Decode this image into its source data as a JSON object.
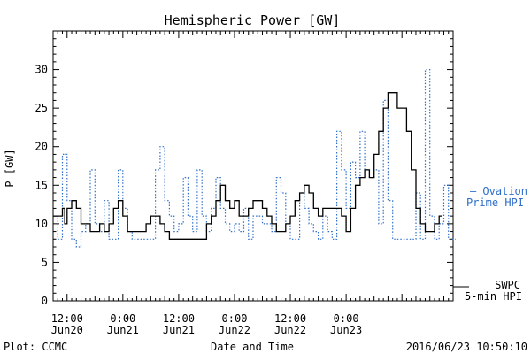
{
  "chart_data": {
    "type": "line",
    "title": "Hemispheric Power [GW]",
    "ylabel": "P [GW]",
    "xlabel": "Date and Time",
    "ylim": [
      0,
      35
    ],
    "y_ticks": [
      0,
      5,
      10,
      15,
      20,
      25,
      30
    ],
    "xlim": [
      "2016-06-20T09:00",
      "2016-06-23T23:00"
    ],
    "x_ticks": [
      {
        "t": "2016-06-20T12:00",
        "time": "12:00",
        "date": "Jun20"
      },
      {
        "t": "2016-06-21T00:00",
        "time": "0:00",
        "date": "Jun21"
      },
      {
        "t": "2016-06-21T12:00",
        "time": "12:00",
        "date": "Jun21"
      },
      {
        "t": "2016-06-22T00:00",
        "time": "0:00",
        "date": "Jun22"
      },
      {
        "t": "2016-06-22T12:00",
        "time": "12:00",
        "date": "Jun22"
      },
      {
        "t": "2016-06-23T00:00",
        "time": "0:00",
        "date": "Jun23"
      }
    ],
    "series": [
      {
        "name": "SWPC 5-min HPI",
        "color": "#000000",
        "style": "solid",
        "points": [
          [
            "2016-06-20T09:00",
            11
          ],
          [
            "2016-06-20T10:00",
            11
          ],
          [
            "2016-06-20T11:00",
            12
          ],
          [
            "2016-06-20T11:30",
            10
          ],
          [
            "2016-06-20T12:00",
            12
          ],
          [
            "2016-06-20T13:00",
            13
          ],
          [
            "2016-06-20T14:00",
            12
          ],
          [
            "2016-06-20T15:00",
            10
          ],
          [
            "2016-06-20T16:00",
            10
          ],
          [
            "2016-06-20T17:00",
            9
          ],
          [
            "2016-06-20T18:00",
            9
          ],
          [
            "2016-06-20T19:00",
            10
          ],
          [
            "2016-06-20T20:00",
            9
          ],
          [
            "2016-06-20T21:00",
            10
          ],
          [
            "2016-06-20T22:00",
            12
          ],
          [
            "2016-06-20T23:00",
            13
          ],
          [
            "2016-06-21T00:00",
            11
          ],
          [
            "2016-06-21T01:00",
            9
          ],
          [
            "2016-06-21T02:00",
            9
          ],
          [
            "2016-06-21T03:00",
            9
          ],
          [
            "2016-06-21T04:00",
            9
          ],
          [
            "2016-06-21T05:00",
            10
          ],
          [
            "2016-06-21T06:00",
            11
          ],
          [
            "2016-06-21T07:00",
            11
          ],
          [
            "2016-06-21T08:00",
            10
          ],
          [
            "2016-06-21T09:00",
            9
          ],
          [
            "2016-06-21T10:00",
            8
          ],
          [
            "2016-06-21T11:00",
            8
          ],
          [
            "2016-06-21T12:00",
            8
          ],
          [
            "2016-06-21T13:00",
            8
          ],
          [
            "2016-06-21T14:00",
            8
          ],
          [
            "2016-06-21T15:00",
            8
          ],
          [
            "2016-06-21T16:00",
            8
          ],
          [
            "2016-06-21T17:00",
            8
          ],
          [
            "2016-06-21T18:00",
            10
          ],
          [
            "2016-06-21T19:00",
            11
          ],
          [
            "2016-06-21T20:00",
            13
          ],
          [
            "2016-06-21T21:00",
            15
          ],
          [
            "2016-06-21T22:00",
            13
          ],
          [
            "2016-06-21T23:00",
            12
          ],
          [
            "2016-06-22T00:00",
            13
          ],
          [
            "2016-06-22T01:00",
            11
          ],
          [
            "2016-06-22T02:00",
            11
          ],
          [
            "2016-06-22T03:00",
            12
          ],
          [
            "2016-06-22T04:00",
            13
          ],
          [
            "2016-06-22T05:00",
            13
          ],
          [
            "2016-06-22T06:00",
            12
          ],
          [
            "2016-06-22T07:00",
            11
          ],
          [
            "2016-06-22T08:00",
            10
          ],
          [
            "2016-06-22T09:00",
            9
          ],
          [
            "2016-06-22T10:00",
            9
          ],
          [
            "2016-06-22T11:00",
            10
          ],
          [
            "2016-06-22T12:00",
            11
          ],
          [
            "2016-06-22T13:00",
            13
          ],
          [
            "2016-06-22T14:00",
            14
          ],
          [
            "2016-06-22T15:00",
            15
          ],
          [
            "2016-06-22T16:00",
            14
          ],
          [
            "2016-06-22T17:00",
            12
          ],
          [
            "2016-06-22T18:00",
            11
          ],
          [
            "2016-06-22T19:00",
            12
          ],
          [
            "2016-06-22T20:00",
            12
          ],
          [
            "2016-06-22T21:00",
            12
          ],
          [
            "2016-06-22T22:00",
            12
          ],
          [
            "2016-06-22T23:00",
            11
          ],
          [
            "2016-06-23T00:00",
            9
          ],
          [
            "2016-06-23T01:00",
            12
          ],
          [
            "2016-06-23T02:00",
            15
          ],
          [
            "2016-06-23T03:00",
            16
          ],
          [
            "2016-06-23T04:00",
            17
          ],
          [
            "2016-06-23T05:00",
            16
          ],
          [
            "2016-06-23T06:00",
            19
          ],
          [
            "2016-06-23T07:00",
            22
          ],
          [
            "2016-06-23T08:00",
            25
          ],
          [
            "2016-06-23T09:00",
            27
          ],
          [
            "2016-06-23T10:00",
            27
          ],
          [
            "2016-06-23T11:00",
            25
          ],
          [
            "2016-06-23T12:00",
            25
          ],
          [
            "2016-06-23T13:00",
            22
          ],
          [
            "2016-06-23T14:00",
            17
          ],
          [
            "2016-06-23T15:00",
            12
          ],
          [
            "2016-06-23T16:00",
            10
          ],
          [
            "2016-06-23T17:00",
            9
          ],
          [
            "2016-06-23T18:00",
            9
          ],
          [
            "2016-06-23T19:00",
            10
          ],
          [
            "2016-06-23T20:00",
            11
          ]
        ]
      },
      {
        "name": "Ovation Prime HPI",
        "color": "#2f6fc9",
        "style": "dotted",
        "points": [
          [
            "2016-06-20T09:00",
            11
          ],
          [
            "2016-06-20T10:00",
            8
          ],
          [
            "2016-06-20T11:00",
            19
          ],
          [
            "2016-06-20T12:00",
            13
          ],
          [
            "2016-06-20T13:00",
            8
          ],
          [
            "2016-06-20T14:00",
            7
          ],
          [
            "2016-06-20T15:00",
            9
          ],
          [
            "2016-06-20T16:00",
            10
          ],
          [
            "2016-06-20T17:00",
            17
          ],
          [
            "2016-06-20T18:00",
            10
          ],
          [
            "2016-06-20T19:00",
            9
          ],
          [
            "2016-06-20T20:00",
            13
          ],
          [
            "2016-06-20T21:00",
            8
          ],
          [
            "2016-06-20T22:00",
            8
          ],
          [
            "2016-06-20T23:00",
            17
          ],
          [
            "2016-06-21T00:00",
            12
          ],
          [
            "2016-06-21T01:00",
            9
          ],
          [
            "2016-06-21T02:00",
            8
          ],
          [
            "2016-06-21T03:00",
            8
          ],
          [
            "2016-06-21T04:00",
            8
          ],
          [
            "2016-06-21T05:00",
            8
          ],
          [
            "2016-06-21T06:00",
            8
          ],
          [
            "2016-06-21T07:00",
            17
          ],
          [
            "2016-06-21T08:00",
            20
          ],
          [
            "2016-06-21T09:00",
            13
          ],
          [
            "2016-06-21T10:00",
            11
          ],
          [
            "2016-06-21T11:00",
            9
          ],
          [
            "2016-06-21T12:00",
            10
          ],
          [
            "2016-06-21T13:00",
            16
          ],
          [
            "2016-06-21T14:00",
            11
          ],
          [
            "2016-06-21T15:00",
            9
          ],
          [
            "2016-06-21T16:00",
            17
          ],
          [
            "2016-06-21T17:00",
            11
          ],
          [
            "2016-06-21T18:00",
            9
          ],
          [
            "2016-06-21T19:00",
            12
          ],
          [
            "2016-06-21T20:00",
            16
          ],
          [
            "2016-06-21T21:00",
            12
          ],
          [
            "2016-06-21T22:00",
            10
          ],
          [
            "2016-06-21T23:00",
            9
          ],
          [
            "2016-06-22T00:00",
            10
          ],
          [
            "2016-06-22T01:00",
            9
          ],
          [
            "2016-06-22T02:00",
            12
          ],
          [
            "2016-06-22T03:00",
            8
          ],
          [
            "2016-06-22T04:00",
            11
          ],
          [
            "2016-06-22T05:00",
            11
          ],
          [
            "2016-06-22T06:00",
            10
          ],
          [
            "2016-06-22T07:00",
            10
          ],
          [
            "2016-06-22T08:00",
            9
          ],
          [
            "2016-06-22T09:00",
            16
          ],
          [
            "2016-06-22T10:00",
            14
          ],
          [
            "2016-06-22T11:00",
            10
          ],
          [
            "2016-06-22T12:00",
            8
          ],
          [
            "2016-06-22T13:00",
            8
          ],
          [
            "2016-06-22T14:00",
            14
          ],
          [
            "2016-06-22T15:00",
            12
          ],
          [
            "2016-06-22T16:00",
            10
          ],
          [
            "2016-06-22T17:00",
            9
          ],
          [
            "2016-06-22T18:00",
            8
          ],
          [
            "2016-06-22T19:00",
            11
          ],
          [
            "2016-06-22T20:00",
            9
          ],
          [
            "2016-06-22T21:00",
            8
          ],
          [
            "2016-06-22T22:00",
            22
          ],
          [
            "2016-06-22T23:00",
            17
          ],
          [
            "2016-06-23T00:00",
            12
          ],
          [
            "2016-06-23T01:00",
            18
          ],
          [
            "2016-06-23T02:00",
            16
          ],
          [
            "2016-06-23T03:00",
            22
          ],
          [
            "2016-06-23T04:00",
            17
          ],
          [
            "2016-06-23T05:00",
            16
          ],
          [
            "2016-06-23T06:00",
            17
          ],
          [
            "2016-06-23T07:00",
            10
          ],
          [
            "2016-06-23T08:00",
            26
          ],
          [
            "2016-06-23T09:00",
            13
          ],
          [
            "2016-06-23T10:00",
            8
          ],
          [
            "2016-06-23T11:00",
            8
          ],
          [
            "2016-06-23T12:00",
            8
          ],
          [
            "2016-06-23T13:00",
            8
          ],
          [
            "2016-06-23T14:00",
            8
          ],
          [
            "2016-06-23T15:00",
            14
          ],
          [
            "2016-06-23T16:00",
            8
          ],
          [
            "2016-06-23T17:00",
            30
          ],
          [
            "2016-06-23T18:00",
            11
          ],
          [
            "2016-06-23T19:00",
            8
          ],
          [
            "2016-06-23T20:00",
            10
          ],
          [
            "2016-06-23T21:00",
            15
          ],
          [
            "2016-06-23T22:00",
            8
          ],
          [
            "2016-06-23T23:00",
            8
          ]
        ]
      }
    ],
    "legend": [
      {
        "lines": [
          "SWPC",
          "5-min HPI"
        ],
        "color": "#000000",
        "marker": "—",
        "placement": "right-bottom"
      },
      {
        "lines": [
          "— Ovation",
          "Prime HPI"
        ],
        "color": "#2f6fc9",
        "placement": "right-middle"
      }
    ],
    "grid": false
  },
  "footer": {
    "plot_credit": "Plot: CCMC",
    "timestamp": "2016/06/23 10:50:10"
  }
}
